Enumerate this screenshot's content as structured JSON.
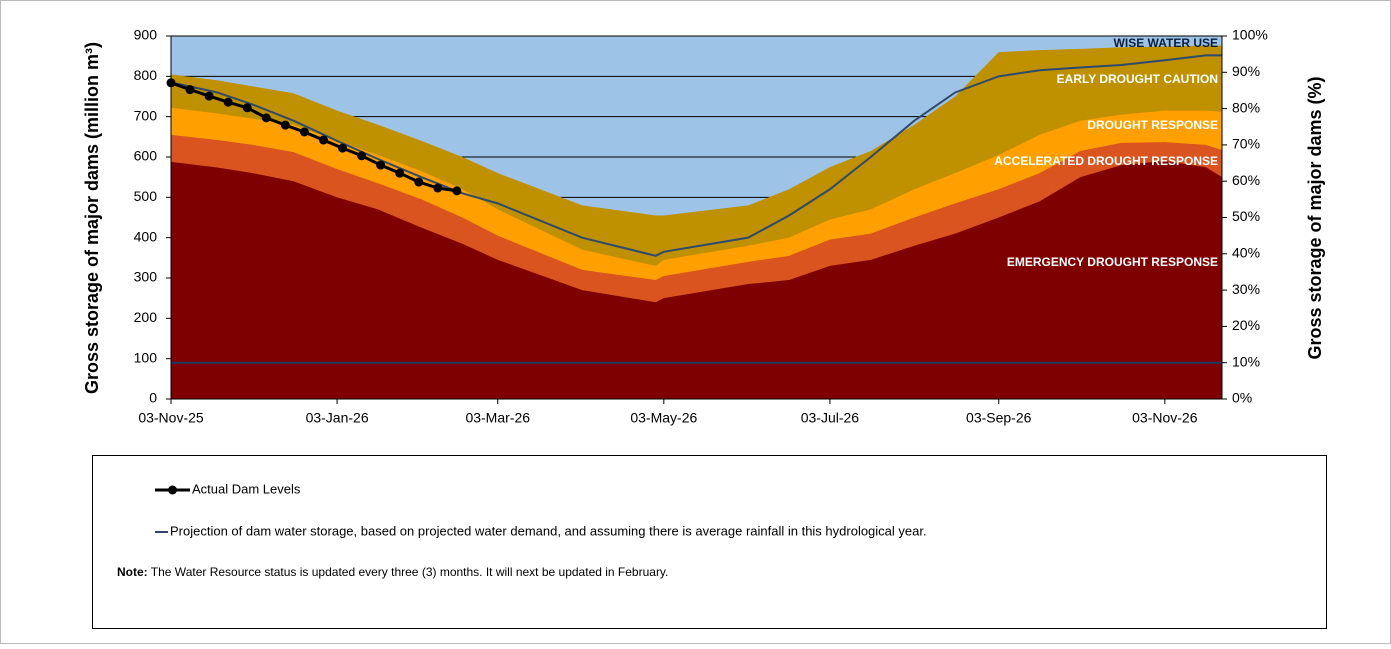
{
  "chart_data": {
    "type": "area",
    "ylabel": "Gross storage of major dams (million m³)",
    "y2label": "Gross storage of major dams (%)",
    "xlim": [
      "2025-11-03",
      "2026-11-24"
    ],
    "xticks": [
      {
        "value": "2025-11-03",
        "label": "03-Nov-25"
      },
      {
        "value": "2026-01-03",
        "label": "03-Jan-26"
      },
      {
        "value": "2026-03-03",
        "label": "03-Mar-26"
      },
      {
        "value": "2026-05-03",
        "label": "03-May-26"
      },
      {
        "value": "2026-07-03",
        "label": "03-Jul-26"
      },
      {
        "value": "2026-09-03",
        "label": "03-Sep-26"
      },
      {
        "value": "2026-11-03",
        "label": "03-Nov-26"
      }
    ],
    "ylim": [
      0,
      900
    ],
    "yticks": [
      0,
      100,
      200,
      300,
      400,
      500,
      600,
      700,
      800,
      900
    ],
    "y2lim": [
      0,
      100
    ],
    "y2ticks": [
      {
        "value": 0,
        "label": "0%"
      },
      {
        "value": 10,
        "label": "10%"
      },
      {
        "value": 20,
        "label": "20%"
      },
      {
        "value": 30,
        "label": "30%"
      },
      {
        "value": 40,
        "label": "40%"
      },
      {
        "value": 50,
        "label": "50%"
      },
      {
        "value": 60,
        "label": "60%"
      },
      {
        "value": 70,
        "label": "70%"
      },
      {
        "value": 80,
        "label": "80%"
      },
      {
        "value": 90,
        "label": "90%"
      },
      {
        "value": 100,
        "label": "100%"
      }
    ],
    "grid": true,
    "series": [
      {
        "name": "WISE WATER USE",
        "kind": "area",
        "color": "#9dc3e6",
        "x": [
          "2025-11-03",
          "2025-11-20",
          "2025-12-03",
          "2025-12-18",
          "2026-01-03",
          "2026-01-18",
          "2026-02-03",
          "2026-02-18",
          "2026-03-03",
          "2026-04-03",
          "2026-04-30",
          "2026-05-03",
          "2026-06-03",
          "2026-06-18",
          "2026-07-03",
          "2026-07-18",
          "2026-08-03",
          "2026-08-18",
          "2026-09-03",
          "2026-09-18",
          "2026-10-03",
          "2026-10-18",
          "2026-11-03",
          "2026-11-18",
          "2026-11-24"
        ],
        "values": [
          900,
          900,
          900,
          900,
          900,
          900,
          900,
          900,
          900,
          900,
          900,
          900,
          900,
          900,
          900,
          900,
          900,
          900,
          900,
          900,
          900,
          900,
          900,
          900,
          900
        ]
      },
      {
        "name": "EARLY DROUGHT CAUTION",
        "kind": "area",
        "color": "#bf9000",
        "x": [
          "2025-11-03",
          "2025-11-20",
          "2025-12-03",
          "2025-12-18",
          "2026-01-03",
          "2026-01-18",
          "2026-02-03",
          "2026-02-18",
          "2026-03-03",
          "2026-04-03",
          "2026-04-30",
          "2026-05-03",
          "2026-06-03",
          "2026-06-18",
          "2026-07-03",
          "2026-07-18",
          "2026-08-03",
          "2026-08-18",
          "2026-09-03",
          "2026-09-18",
          "2026-10-03",
          "2026-10-18",
          "2026-11-03",
          "2026-11-18",
          "2026-11-24"
        ],
        "values": [
          805,
          790,
          775,
          758,
          715,
          680,
          640,
          600,
          560,
          480,
          455,
          455,
          480,
          520,
          575,
          615,
          680,
          750,
          860,
          865,
          868,
          872,
          874,
          876,
          876
        ]
      },
      {
        "name": "DROUGHT RESPONSE",
        "kind": "area",
        "color": "#ffa000",
        "x": [
          "2025-11-03",
          "2025-11-20",
          "2025-12-03",
          "2025-12-18",
          "2026-01-03",
          "2026-01-18",
          "2026-02-03",
          "2026-02-18",
          "2026-03-03",
          "2026-04-03",
          "2026-04-30",
          "2026-05-03",
          "2026-06-03",
          "2026-06-18",
          "2026-07-03",
          "2026-07-18",
          "2026-08-03",
          "2026-08-18",
          "2026-09-03",
          "2026-09-18",
          "2026-10-03",
          "2026-10-18",
          "2026-11-03",
          "2026-11-18",
          "2026-11-24"
        ],
        "values": [
          722,
          708,
          695,
          680,
          640,
          605,
          565,
          520,
          470,
          370,
          330,
          345,
          380,
          400,
          445,
          470,
          520,
          560,
          605,
          655,
          690,
          705,
          715,
          715,
          712
        ]
      },
      {
        "name": "ACCELERATED DROUGHT RESPONSE",
        "kind": "area",
        "color": "#d9541e",
        "x": [
          "2025-11-03",
          "2025-11-20",
          "2025-12-03",
          "2025-12-18",
          "2026-01-03",
          "2026-01-18",
          "2026-02-03",
          "2026-02-18",
          "2026-03-03",
          "2026-04-03",
          "2026-04-30",
          "2026-05-03",
          "2026-06-03",
          "2026-06-18",
          "2026-07-03",
          "2026-07-18",
          "2026-08-03",
          "2026-08-18",
          "2026-09-03",
          "2026-09-18",
          "2026-10-03",
          "2026-10-18",
          "2026-11-03",
          "2026-11-18",
          "2026-11-24"
        ],
        "values": [
          655,
          642,
          630,
          612,
          570,
          535,
          495,
          450,
          405,
          320,
          295,
          305,
          340,
          355,
          395,
          410,
          450,
          485,
          520,
          560,
          615,
          635,
          637,
          630,
          617
        ]
      },
      {
        "name": "EMERGENCY DROUGHT RESPONSE",
        "kind": "area",
        "color": "#7f0000",
        "x": [
          "2025-11-03",
          "2025-11-20",
          "2025-12-03",
          "2025-12-18",
          "2026-01-03",
          "2026-01-18",
          "2026-02-03",
          "2026-02-18",
          "2026-03-03",
          "2026-04-03",
          "2026-04-30",
          "2026-05-03",
          "2026-06-03",
          "2026-06-18",
          "2026-07-03",
          "2026-07-18",
          "2026-08-03",
          "2026-08-18",
          "2026-09-03",
          "2026-09-18",
          "2026-10-03",
          "2026-10-18",
          "2026-11-03",
          "2026-11-18",
          "2026-11-24"
        ],
        "values": [
          588,
          574,
          560,
          540,
          500,
          470,
          425,
          385,
          345,
          270,
          240,
          250,
          285,
          295,
          330,
          345,
          380,
          410,
          450,
          490,
          550,
          580,
          590,
          575,
          550
        ]
      },
      {
        "kind": "line",
        "color": "#1f3864",
        "x": [
          "2025-11-03",
          "2026-11-24"
        ],
        "values": [
          90,
          90
        ]
      },
      {
        "name": "Projection of dam water storage, based on projected water demand, and assuming there is average rainfall in this hydrological year.",
        "kind": "line",
        "color": "#2e4a6e",
        "x": [
          "2025-11-03",
          "2025-11-20",
          "2025-12-03",
          "2025-12-18",
          "2026-01-03",
          "2026-01-18",
          "2026-02-03",
          "2026-02-18",
          "2026-03-03",
          "2026-04-03",
          "2026-04-30",
          "2026-05-03",
          "2026-06-03",
          "2026-06-18",
          "2026-07-03",
          "2026-07-18",
          "2026-08-03",
          "2026-08-18",
          "2026-09-03",
          "2026-09-18",
          "2026-10-03",
          "2026-10-18",
          "2026-11-03",
          "2026-11-18",
          "2026-11-24"
        ],
        "values": [
          785,
          760,
          730,
          690,
          640,
          595,
          550,
          510,
          485,
          400,
          355,
          365,
          400,
          455,
          520,
          600,
          690,
          760,
          800,
          815,
          822,
          828,
          840,
          852,
          852
        ]
      },
      {
        "name": "Actual Dam Levels",
        "kind": "line",
        "markers": true,
        "color": "#000000",
        "x": [
          "2025-11-03",
          "2025-11-10",
          "2025-11-17",
          "2025-11-24",
          "2025-12-01",
          "2025-12-08",
          "2025-12-15",
          "2025-12-22",
          "2025-12-29",
          "2026-01-05",
          "2026-01-12",
          "2026-01-19",
          "2026-01-26",
          "2026-02-02",
          "2026-02-09",
          "2026-02-16"
        ],
        "values": [
          784,
          767,
          751,
          736,
          722,
          697,
          679,
          662,
          642,
          622,
          603,
          580,
          560,
          538,
          523,
          516
        ]
      }
    ],
    "note": {
      "label": "Note:",
      "text": "The Water Resource status is updated every three (3) months. It will next be updated in February."
    }
  }
}
